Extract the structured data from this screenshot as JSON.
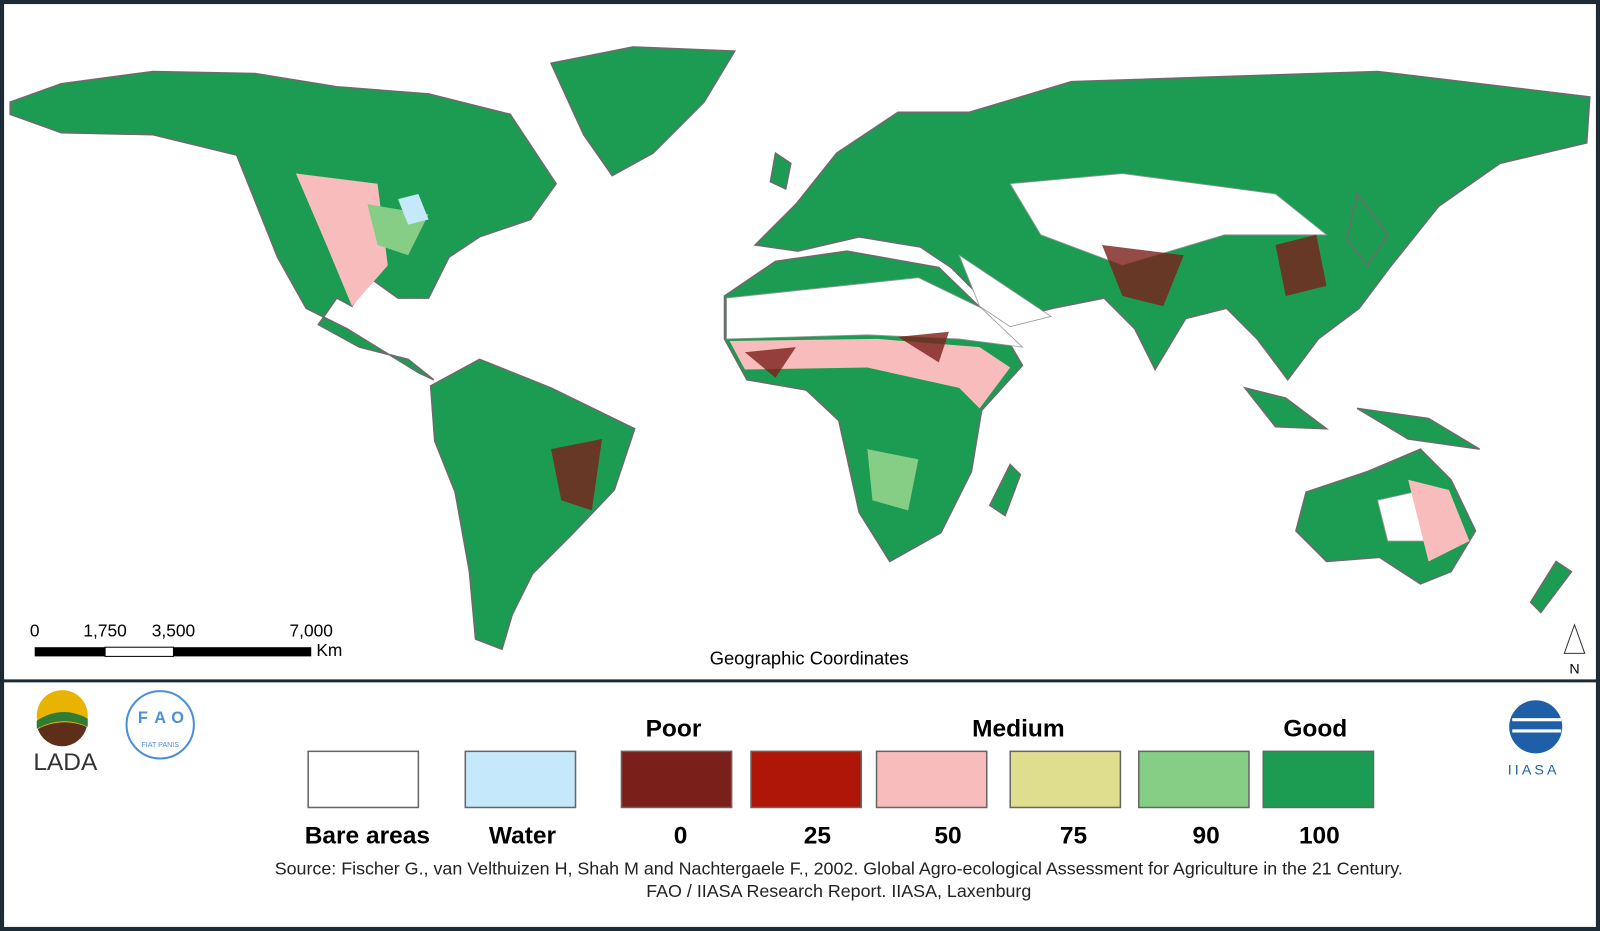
{
  "map": {
    "scale_bar": {
      "ticks": [
        "0",
        "1,750",
        "3,500",
        "7,000"
      ],
      "unit": "Km"
    },
    "projection_note": "Geographic Coordinates",
    "north_label": "N"
  },
  "logos": {
    "lada": "LADA",
    "fao": [
      "F",
      "A",
      "O"
    ],
    "fao_motto": "FIAT PANIS",
    "iiasa": "IIASA"
  },
  "legend": {
    "headings": [
      "Poor",
      "Medium",
      "Good"
    ],
    "items": [
      {
        "label": "Bare areas",
        "color": "#ffffff"
      },
      {
        "label": "Water",
        "color": "#c5e8fb"
      },
      {
        "label": "0",
        "color": "#7a1f1a"
      },
      {
        "label": "25",
        "color": "#b01608"
      },
      {
        "label": "50",
        "color": "#f9bcbc"
      },
      {
        "label": "75",
        "color": "#dede8e"
      },
      {
        "label": "90",
        "color": "#86ce86"
      },
      {
        "label": "100",
        "color": "#1c9c52"
      }
    ]
  },
  "source": [
    "Source: Fischer G., van Velthuizen H, Shah M and Nachtergaele F., 2002. Global Agro-ecological Assessment for Agriculture in the 21 Century.",
    "FAO / IIASA Research Report. IIASA, Laxenburg"
  ]
}
